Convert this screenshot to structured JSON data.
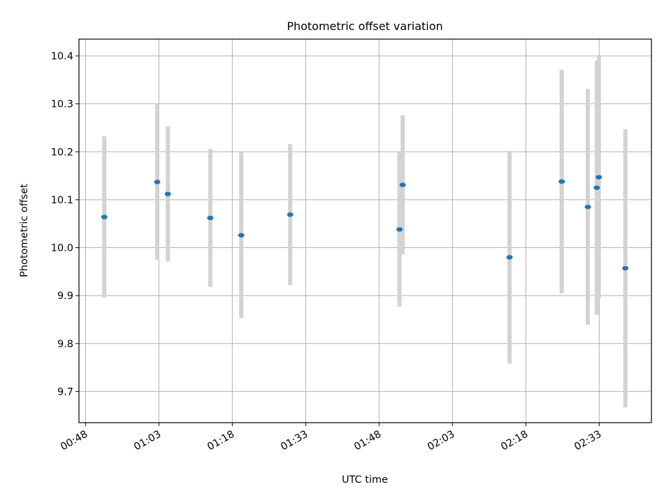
{
  "chart_data": {
    "type": "scatter",
    "title": "Photometric offset variation",
    "xlabel": "UTC time",
    "ylabel": "Photometric offset",
    "x_ticks": [
      "00:48",
      "01:03",
      "01:18",
      "01:33",
      "01:48",
      "02:03",
      "02:18",
      "02:33"
    ],
    "y_ticks": [
      "9.7",
      "9.8",
      "9.9",
      "10.0",
      "10.1",
      "10.2",
      "10.3",
      "10.4"
    ],
    "x_range": [
      "00:46:40",
      "02:43:40"
    ],
    "ylim": [
      9.635,
      10.435
    ],
    "grid": true,
    "colors": {
      "points": "#1f77b4",
      "error_bars": "#d3d3d3",
      "grid": "#b0b0b0"
    },
    "points": [
      {
        "time": "00:51:50",
        "y": 10.064,
        "err": 0.168
      },
      {
        "time": "01:02:40",
        "y": 10.137,
        "err": 0.162
      },
      {
        "time": "01:04:50",
        "y": 10.112,
        "err": 0.141
      },
      {
        "time": "01:13:30",
        "y": 10.062,
        "err": 0.144
      },
      {
        "time": "01:19:50",
        "y": 10.026,
        "err": 0.173
      },
      {
        "time": "01:29:50",
        "y": 10.069,
        "err": 0.147
      },
      {
        "time": "01:52:10",
        "y": 10.038,
        "err": 0.161
      },
      {
        "time": "01:52:50",
        "y": 10.131,
        "err": 0.145
      },
      {
        "time": "02:14:40",
        "y": 9.98,
        "err": 0.222
      },
      {
        "time": "02:25:20",
        "y": 10.138,
        "err": 0.233
      },
      {
        "time": "02:30:40",
        "y": 10.085,
        "err": 0.246
      },
      {
        "time": "02:32:30",
        "y": 10.125,
        "err": 0.265
      },
      {
        "time": "02:32:55",
        "y": 10.147,
        "err": 0.253
      },
      {
        "time": "02:38:20",
        "y": 9.957,
        "err": 0.29
      }
    ]
  }
}
